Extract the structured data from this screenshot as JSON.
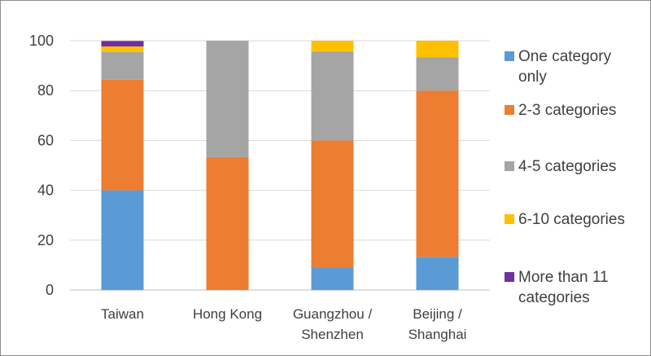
{
  "chart_data": {
    "type": "bar",
    "stacked": true,
    "categories": [
      [
        "Taiwan"
      ],
      [
        "Hong Kong"
      ],
      [
        "Guangzhou /",
        "Shenzhen"
      ],
      [
        "Beijing /",
        "Shanghai"
      ]
    ],
    "series": [
      {
        "name": "One category only",
        "legend_lines": [
          "One category",
          "only"
        ],
        "color": "#5b9bd5",
        "values": [
          40,
          0,
          9,
          13.3
        ]
      },
      {
        "name": "2-3 categories",
        "legend_lines": [
          "2-3 categories"
        ],
        "color": "#ed7d31",
        "values": [
          44.4,
          53.3,
          51,
          66.7
        ]
      },
      {
        "name": "4-5 categories",
        "legend_lines": [
          "4-5 categories"
        ],
        "color": "#a5a5a5",
        "values": [
          11.1,
          46.7,
          35.6,
          13.3
        ]
      },
      {
        "name": "6-10 categories",
        "legend_lines": [
          "6-10 categories"
        ],
        "color": "#ffc000",
        "values": [
          2.2,
          0,
          4.4,
          6.7
        ]
      },
      {
        "name": "More than 11 categories",
        "legend_lines": [
          "More than 11",
          "categories"
        ],
        "color": "#7030a0",
        "values": [
          2.2,
          0,
          0,
          0
        ]
      }
    ],
    "ylim": [
      0,
      100
    ],
    "yticks": [
      "0",
      "20",
      "40",
      "60",
      "80",
      "100"
    ],
    "grid": true,
    "legend_position": "right",
    "title": "",
    "xlabel": "",
    "ylabel": ""
  }
}
